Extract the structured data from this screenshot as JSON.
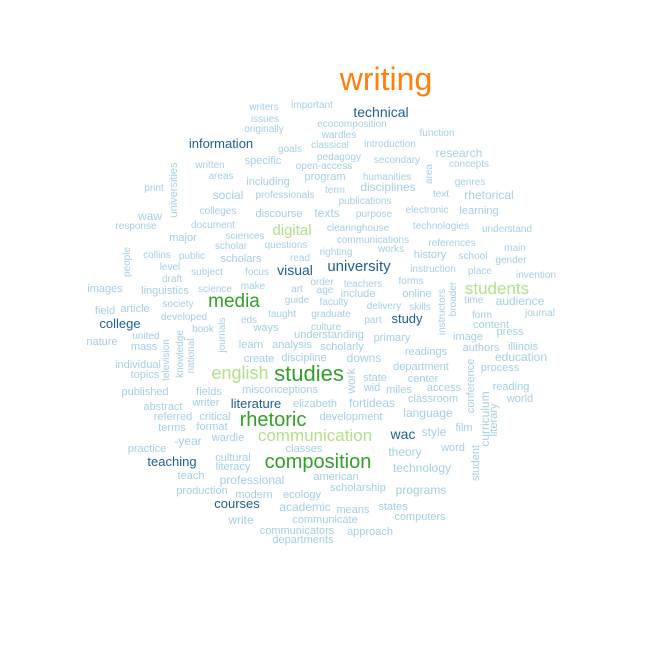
{
  "word_cloud": {
    "palette": {
      "orange": "#ff7f0e",
      "dark_blue": "#1f5f94",
      "light_blue": "#a6cee3",
      "dark_green": "#33a02c",
      "light_green": "#b2df8a"
    },
    "words": [
      {
        "text": "writing",
        "color": "orange"
      },
      {
        "text": "technical",
        "color": "dark_blue"
      },
      {
        "text": "information",
        "color": "dark_blue"
      },
      {
        "text": "digital",
        "color": "light_green"
      },
      {
        "text": "university",
        "color": "dark_blue"
      },
      {
        "text": "visual",
        "color": "dark_blue"
      },
      {
        "text": "students",
        "color": "light_green"
      },
      {
        "text": "media",
        "color": "dark_green"
      },
      {
        "text": "college",
        "color": "dark_blue"
      },
      {
        "text": "study",
        "color": "dark_blue"
      },
      {
        "text": "english",
        "color": "light_green"
      },
      {
        "text": "studies",
        "color": "dark_green"
      },
      {
        "text": "literature",
        "color": "dark_blue"
      },
      {
        "text": "rhetoric",
        "color": "dark_green"
      },
      {
        "text": "communication",
        "color": "light_green"
      },
      {
        "text": "wac",
        "color": "dark_blue"
      },
      {
        "text": "composition",
        "color": "dark_green"
      },
      {
        "text": "teaching",
        "color": "dark_blue"
      },
      {
        "text": "courses",
        "color": "dark_blue"
      },
      {
        "text": "writers",
        "color": "light_blue"
      },
      {
        "text": "important",
        "color": "light_blue"
      },
      {
        "text": "issues",
        "color": "light_blue"
      },
      {
        "text": "ecocomposition",
        "color": "light_blue"
      },
      {
        "text": "originally",
        "color": "light_blue"
      },
      {
        "text": "wardles",
        "color": "light_blue"
      },
      {
        "text": "function",
        "color": "light_blue"
      },
      {
        "text": "goals",
        "color": "light_blue"
      },
      {
        "text": "classical",
        "color": "light_blue"
      },
      {
        "text": "introduction",
        "color": "light_blue"
      },
      {
        "text": "pedagogy",
        "color": "light_blue"
      },
      {
        "text": "secondary",
        "color": "light_blue"
      },
      {
        "text": "research",
        "color": "light_blue"
      },
      {
        "text": "specific",
        "color": "light_blue"
      },
      {
        "text": "open-access",
        "color": "light_blue"
      },
      {
        "text": "concepts",
        "color": "light_blue"
      },
      {
        "text": "written",
        "color": "light_blue"
      },
      {
        "text": "areas",
        "color": "light_blue"
      },
      {
        "text": "program",
        "color": "light_blue"
      },
      {
        "text": "humanities",
        "color": "light_blue"
      },
      {
        "text": "area",
        "color": "light_blue"
      },
      {
        "text": "genres",
        "color": "light_blue"
      },
      {
        "text": "including",
        "color": "light_blue"
      },
      {
        "text": "disciplines",
        "color": "light_blue"
      },
      {
        "text": "term",
        "color": "light_blue"
      },
      {
        "text": "text",
        "color": "light_blue"
      },
      {
        "text": "rhetorical",
        "color": "light_blue"
      },
      {
        "text": "print",
        "color": "light_blue"
      },
      {
        "text": "social",
        "color": "light_blue"
      },
      {
        "text": "professionals",
        "color": "light_blue"
      },
      {
        "text": "publications",
        "color": "light_blue"
      },
      {
        "text": "universities",
        "color": "light_blue"
      },
      {
        "text": "colleges",
        "color": "light_blue"
      },
      {
        "text": "discourse",
        "color": "light_blue"
      },
      {
        "text": "texts",
        "color": "light_blue"
      },
      {
        "text": "purpose",
        "color": "light_blue"
      },
      {
        "text": "electronic",
        "color": "light_blue"
      },
      {
        "text": "learning",
        "color": "light_blue"
      },
      {
        "text": "waw",
        "color": "light_blue"
      },
      {
        "text": "response",
        "color": "light_blue"
      },
      {
        "text": "document",
        "color": "light_blue"
      },
      {
        "text": "clearinghouse",
        "color": "light_blue"
      },
      {
        "text": "technologies",
        "color": "light_blue"
      },
      {
        "text": "understand",
        "color": "light_blue"
      },
      {
        "text": "major",
        "color": "light_blue"
      },
      {
        "text": "sciences",
        "color": "light_blue"
      },
      {
        "text": "communications",
        "color": "light_blue"
      },
      {
        "text": "references",
        "color": "light_blue"
      },
      {
        "text": "main",
        "color": "light_blue"
      },
      {
        "text": "scholar",
        "color": "light_blue"
      },
      {
        "text": "questions",
        "color": "light_blue"
      },
      {
        "text": "righting",
        "color": "light_blue"
      },
      {
        "text": "works",
        "color": "light_blue"
      },
      {
        "text": "history",
        "color": "light_blue"
      },
      {
        "text": "school",
        "color": "light_blue"
      },
      {
        "text": "gender",
        "color": "light_blue"
      },
      {
        "text": "people",
        "color": "light_blue"
      },
      {
        "text": "collins",
        "color": "light_blue"
      },
      {
        "text": "public",
        "color": "light_blue"
      },
      {
        "text": "scholars",
        "color": "light_blue"
      },
      {
        "text": "read",
        "color": "light_blue"
      },
      {
        "text": "level",
        "color": "light_blue"
      },
      {
        "text": "subject",
        "color": "light_blue"
      },
      {
        "text": "focus",
        "color": "light_blue"
      },
      {
        "text": "instruction",
        "color": "light_blue"
      },
      {
        "text": "place",
        "color": "light_blue"
      },
      {
        "text": "invention",
        "color": "light_blue"
      },
      {
        "text": "draft",
        "color": "light_blue"
      },
      {
        "text": "order",
        "color": "light_blue"
      },
      {
        "text": "forms",
        "color": "light_blue"
      },
      {
        "text": "images",
        "color": "light_blue"
      },
      {
        "text": "linguistics",
        "color": "light_blue"
      },
      {
        "text": "science",
        "color": "light_blue"
      },
      {
        "text": "make",
        "color": "light_blue"
      },
      {
        "text": "art",
        "color": "light_blue"
      },
      {
        "text": "age",
        "color": "light_blue"
      },
      {
        "text": "teachers",
        "color": "light_blue"
      },
      {
        "text": "include",
        "color": "light_blue"
      },
      {
        "text": "online",
        "color": "light_blue"
      },
      {
        "text": "broader",
        "color": "light_blue"
      },
      {
        "text": "time",
        "color": "light_blue"
      },
      {
        "text": "audience",
        "color": "light_blue"
      },
      {
        "text": "field",
        "color": "light_blue"
      },
      {
        "text": "article",
        "color": "light_blue"
      },
      {
        "text": "society",
        "color": "light_blue"
      },
      {
        "text": "guide",
        "color": "light_blue"
      },
      {
        "text": "faculty",
        "color": "light_blue"
      },
      {
        "text": "delivery",
        "color": "light_blue"
      },
      {
        "text": "skills",
        "color": "light_blue"
      },
      {
        "text": "form",
        "color": "light_blue"
      },
      {
        "text": "journal",
        "color": "light_blue"
      },
      {
        "text": "developed",
        "color": "light_blue"
      },
      {
        "text": "eds",
        "color": "light_blue"
      },
      {
        "text": "taught",
        "color": "light_blue"
      },
      {
        "text": "graduate",
        "color": "light_blue"
      },
      {
        "text": "part",
        "color": "light_blue"
      },
      {
        "text": "instructors",
        "color": "light_blue"
      },
      {
        "text": "content",
        "color": "light_blue"
      },
      {
        "text": "book",
        "color": "light_blue"
      },
      {
        "text": "ways",
        "color": "light_blue"
      },
      {
        "text": "culture",
        "color": "light_blue"
      },
      {
        "text": "press",
        "color": "light_blue"
      },
      {
        "text": "united",
        "color": "light_blue"
      },
      {
        "text": "knowledge",
        "color": "light_blue"
      },
      {
        "text": "understanding",
        "color": "light_blue"
      },
      {
        "text": "primary",
        "color": "light_blue"
      },
      {
        "text": "image",
        "color": "light_blue"
      },
      {
        "text": "nature",
        "color": "light_blue"
      },
      {
        "text": "mass",
        "color": "light_blue"
      },
      {
        "text": "journals",
        "color": "light_blue"
      },
      {
        "text": "learn",
        "color": "light_blue"
      },
      {
        "text": "analysis",
        "color": "light_blue"
      },
      {
        "text": "scholarly",
        "color": "light_blue"
      },
      {
        "text": "authors",
        "color": "light_blue"
      },
      {
        "text": "illinois",
        "color": "light_blue"
      },
      {
        "text": "national",
        "color": "light_blue"
      },
      {
        "text": "readings",
        "color": "light_blue"
      },
      {
        "text": "education",
        "color": "light_blue"
      },
      {
        "text": "television",
        "color": "light_blue"
      },
      {
        "text": "create",
        "color": "light_blue"
      },
      {
        "text": "discipline",
        "color": "light_blue"
      },
      {
        "text": "downs",
        "color": "light_blue"
      },
      {
        "text": "department",
        "color": "light_blue"
      },
      {
        "text": "process",
        "color": "light_blue"
      },
      {
        "text": "individual",
        "color": "light_blue"
      },
      {
        "text": "topics",
        "color": "light_blue"
      },
      {
        "text": "work",
        "color": "light_blue"
      },
      {
        "text": "state",
        "color": "light_blue"
      },
      {
        "text": "center",
        "color": "light_blue"
      },
      {
        "text": "published",
        "color": "light_blue"
      },
      {
        "text": "fields",
        "color": "light_blue"
      },
      {
        "text": "misconceptions",
        "color": "light_blue"
      },
      {
        "text": "wid",
        "color": "light_blue"
      },
      {
        "text": "miles",
        "color": "light_blue"
      },
      {
        "text": "access",
        "color": "light_blue"
      },
      {
        "text": "conference",
        "color": "light_blue"
      },
      {
        "text": "reading",
        "color": "light_blue"
      },
      {
        "text": "abstract",
        "color": "light_blue"
      },
      {
        "text": "writer",
        "color": "light_blue"
      },
      {
        "text": "elizabeth",
        "color": "light_blue"
      },
      {
        "text": "fortideas",
        "color": "light_blue"
      },
      {
        "text": "classroom",
        "color": "light_blue"
      },
      {
        "text": "curriculum",
        "color": "light_blue"
      },
      {
        "text": "world",
        "color": "light_blue"
      },
      {
        "text": "referred",
        "color": "light_blue"
      },
      {
        "text": "critical",
        "color": "light_blue"
      },
      {
        "text": "development",
        "color": "light_blue"
      },
      {
        "text": "language",
        "color": "light_blue"
      },
      {
        "text": "literary",
        "color": "light_blue"
      },
      {
        "text": "terms",
        "color": "light_blue"
      },
      {
        "text": "format",
        "color": "light_blue"
      },
      {
        "text": "style",
        "color": "light_blue"
      },
      {
        "text": "film",
        "color": "light_blue"
      },
      {
        "text": "-year",
        "color": "light_blue"
      },
      {
        "text": "wardle",
        "color": "light_blue"
      },
      {
        "text": "practice",
        "color": "light_blue"
      },
      {
        "text": "classes",
        "color": "light_blue"
      },
      {
        "text": "theory",
        "color": "light_blue"
      },
      {
        "text": "word",
        "color": "light_blue"
      },
      {
        "text": "cultural",
        "color": "light_blue"
      },
      {
        "text": "literacy",
        "color": "light_blue"
      },
      {
        "text": "technology",
        "color": "light_blue"
      },
      {
        "text": "student",
        "color": "light_blue"
      },
      {
        "text": "teach",
        "color": "light_blue"
      },
      {
        "text": "american",
        "color": "light_blue"
      },
      {
        "text": "professional",
        "color": "light_blue"
      },
      {
        "text": "production",
        "color": "light_blue"
      },
      {
        "text": "modern",
        "color": "light_blue"
      },
      {
        "text": "ecology",
        "color": "light_blue"
      },
      {
        "text": "scholarship",
        "color": "light_blue"
      },
      {
        "text": "programs",
        "color": "light_blue"
      },
      {
        "text": "academic",
        "color": "light_blue"
      },
      {
        "text": "means",
        "color": "light_blue"
      },
      {
        "text": "states",
        "color": "light_blue"
      },
      {
        "text": "computers",
        "color": "light_blue"
      },
      {
        "text": "write",
        "color": "light_blue"
      },
      {
        "text": "communicate",
        "color": "light_blue"
      },
      {
        "text": "communicators",
        "color": "light_blue"
      },
      {
        "text": "approach",
        "color": "light_blue"
      },
      {
        "text": "departments",
        "color": "light_blue"
      }
    ]
  }
}
